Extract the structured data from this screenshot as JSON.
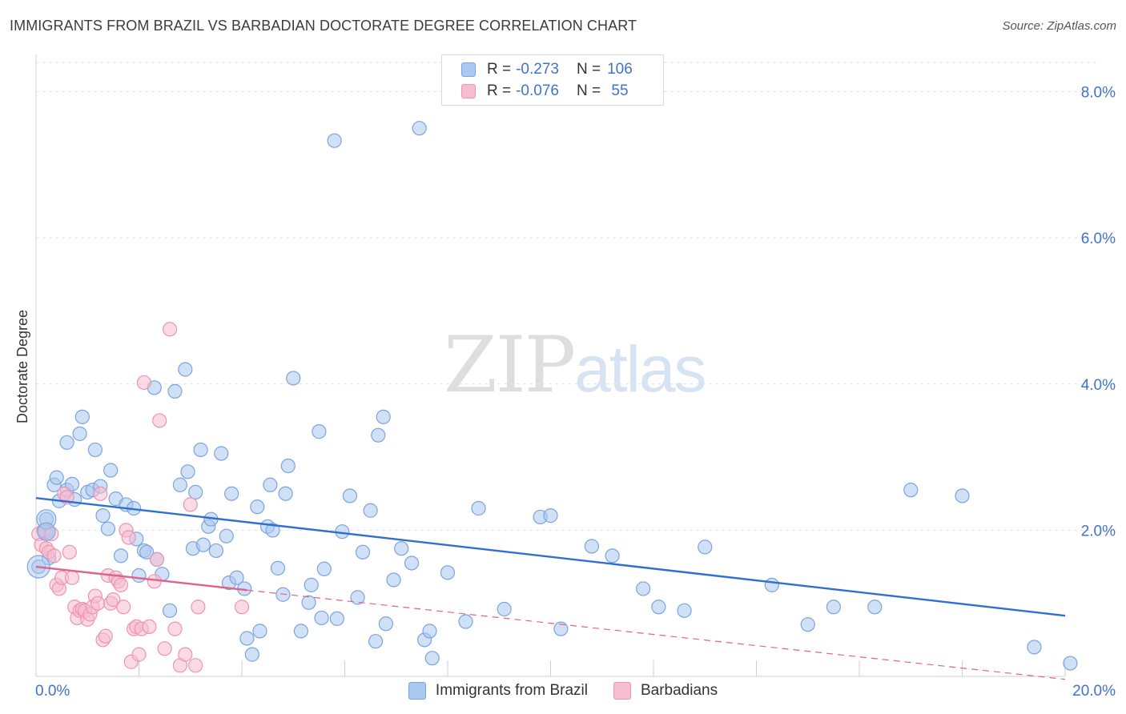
{
  "header": {
    "title": "IMMIGRANTS FROM BRAZIL VS BARBADIAN DOCTORATE DEGREE CORRELATION CHART",
    "source": "Source: ZipAtlas.com"
  },
  "legend_top": {
    "rows": [
      {
        "r_label": "R =",
        "r_value": "-0.273",
        "n_label": "N =",
        "n_value": "106"
      },
      {
        "r_label": "R =",
        "r_value": "-0.076",
        "n_label": "N =",
        "n_value": " 55"
      }
    ]
  },
  "watermark": {
    "zip": "ZIP",
    "atlas": "atlas"
  },
  "colors": {
    "brazil_fill": "#aac8f0",
    "brazil_stroke": "#7ba4dc",
    "brazil_line": "#2f6fd0",
    "barb_fill": "#f6bcd0",
    "barb_stroke": "#ee93b2",
    "barb_line": "#e0628e",
    "tick_color": "#3f73c8",
    "grid": "#e3e3e3"
  },
  "chart_data": {
    "type": "scatter",
    "title": "IMMIGRANTS FROM BRAZIL VS BARBADIAN DOCTORATE DEGREE CORRELATION CHART",
    "xlabel": "",
    "ylabel": "Doctorate Degree",
    "xlim": [
      0,
      20
    ],
    "ylim": [
      0,
      8.4
    ],
    "x_tick_labels": [
      "0.0%",
      "20.0%"
    ],
    "y_ticks": [
      2,
      4,
      6,
      8
    ],
    "y_tick_labels": [
      "2.0%",
      "4.0%",
      "6.0%",
      "8.0%"
    ],
    "grid": true,
    "legend": [
      "Immigrants from Brazil",
      "Barbadians"
    ],
    "series": [
      {
        "name": "Immigrants from Brazil",
        "trend": {
          "x": [
            0,
            20
          ],
          "y": [
            2.44,
            0.83
          ],
          "style": "solid"
        },
        "points": [
          [
            0.05,
            1.5
          ],
          [
            0.2,
            2.15
          ],
          [
            0.2,
            1.98
          ],
          [
            0.25,
            1.62
          ],
          [
            0.35,
            2.62
          ],
          [
            0.4,
            2.72
          ],
          [
            0.45,
            2.4
          ],
          [
            0.6,
            2.55
          ],
          [
            0.6,
            3.2
          ],
          [
            0.7,
            2.63
          ],
          [
            0.75,
            2.42
          ],
          [
            0.85,
            3.32
          ],
          [
            0.9,
            3.55
          ],
          [
            1.0,
            2.52
          ],
          [
            1.1,
            2.55
          ],
          [
            1.15,
            3.1
          ],
          [
            1.25,
            2.6
          ],
          [
            1.3,
            2.2
          ],
          [
            1.4,
            2.02
          ],
          [
            1.45,
            2.82
          ],
          [
            1.55,
            2.43
          ],
          [
            1.65,
            1.65
          ],
          [
            1.75,
            2.35
          ],
          [
            1.9,
            2.3
          ],
          [
            1.95,
            1.88
          ],
          [
            2.0,
            1.38
          ],
          [
            2.1,
            1.72
          ],
          [
            2.15,
            1.7
          ],
          [
            2.3,
            3.95
          ],
          [
            2.35,
            1.6
          ],
          [
            2.45,
            1.4
          ],
          [
            2.6,
            0.9
          ],
          [
            2.7,
            3.9
          ],
          [
            2.8,
            2.62
          ],
          [
            2.9,
            4.2
          ],
          [
            2.95,
            2.8
          ],
          [
            3.05,
            1.75
          ],
          [
            3.1,
            2.52
          ],
          [
            3.2,
            3.1
          ],
          [
            3.25,
            1.8
          ],
          [
            3.35,
            2.05
          ],
          [
            3.4,
            2.15
          ],
          [
            3.5,
            1.72
          ],
          [
            3.6,
            3.05
          ],
          [
            3.7,
            1.92
          ],
          [
            3.75,
            1.28
          ],
          [
            3.8,
            2.5
          ],
          [
            3.9,
            1.35
          ],
          [
            4.05,
            1.2
          ],
          [
            4.1,
            0.52
          ],
          [
            4.2,
            0.3
          ],
          [
            4.3,
            2.32
          ],
          [
            4.35,
            0.62
          ],
          [
            4.5,
            2.05
          ],
          [
            4.55,
            2.62
          ],
          [
            4.6,
            2.0
          ],
          [
            4.7,
            1.48
          ],
          [
            4.8,
            1.12
          ],
          [
            4.85,
            2.5
          ],
          [
            4.9,
            2.88
          ],
          [
            5.0,
            4.08
          ],
          [
            5.15,
            0.62
          ],
          [
            5.3,
            1.01
          ],
          [
            5.35,
            1.25
          ],
          [
            5.5,
            3.35
          ],
          [
            5.55,
            0.8
          ],
          [
            5.6,
            1.47
          ],
          [
            5.8,
            7.33
          ],
          [
            5.85,
            0.79
          ],
          [
            5.95,
            1.98
          ],
          [
            6.1,
            2.47
          ],
          [
            6.25,
            1.08
          ],
          [
            6.35,
            1.7
          ],
          [
            6.5,
            2.27
          ],
          [
            6.6,
            0.48
          ],
          [
            6.65,
            3.3
          ],
          [
            6.75,
            3.55
          ],
          [
            6.8,
            0.72
          ],
          [
            6.95,
            1.32
          ],
          [
            7.1,
            1.75
          ],
          [
            7.3,
            1.55
          ],
          [
            7.45,
            7.5
          ],
          [
            7.55,
            0.5
          ],
          [
            7.65,
            0.62
          ],
          [
            7.7,
            0.25
          ],
          [
            8.0,
            1.42
          ],
          [
            8.35,
            0.75
          ],
          [
            8.6,
            2.3
          ],
          [
            9.1,
            0.92
          ],
          [
            9.8,
            2.18
          ],
          [
            10.0,
            2.2
          ],
          [
            10.2,
            0.65
          ],
          [
            10.8,
            1.78
          ],
          [
            11.2,
            1.65
          ],
          [
            11.8,
            1.2
          ],
          [
            12.1,
            0.95
          ],
          [
            12.6,
            0.9
          ],
          [
            13.0,
            1.77
          ],
          [
            14.3,
            1.25
          ],
          [
            15.0,
            0.71
          ],
          [
            15.5,
            0.95
          ],
          [
            16.3,
            0.95
          ],
          [
            17.0,
            2.55
          ],
          [
            18.0,
            2.47
          ],
          [
            19.4,
            0.4
          ],
          [
            20.1,
            0.18
          ]
        ]
      },
      {
        "name": "Barbadians",
        "trend": {
          "x": [
            0,
            4.1
          ],
          "y": [
            1.5,
            1.18
          ],
          "style": "solid"
        },
        "trend_extension": {
          "x": [
            4.1,
            20
          ],
          "y": [
            1.18,
            -0.04
          ],
          "style": "dashed"
        },
        "points": [
          [
            0.05,
            1.95
          ],
          [
            0.1,
            1.8
          ],
          [
            0.15,
            2.0
          ],
          [
            0.2,
            1.75
          ],
          [
            0.25,
            1.7
          ],
          [
            0.3,
            1.95
          ],
          [
            0.35,
            1.65
          ],
          [
            0.4,
            1.25
          ],
          [
            0.45,
            1.2
          ],
          [
            0.5,
            1.35
          ],
          [
            0.55,
            2.5
          ],
          [
            0.6,
            2.45
          ],
          [
            0.65,
            1.7
          ],
          [
            0.7,
            1.35
          ],
          [
            0.75,
            0.95
          ],
          [
            0.8,
            0.8
          ],
          [
            0.85,
            0.9
          ],
          [
            0.9,
            0.92
          ],
          [
            0.95,
            0.9
          ],
          [
            1.0,
            0.78
          ],
          [
            1.05,
            0.85
          ],
          [
            1.1,
            0.95
          ],
          [
            1.15,
            1.1
          ],
          [
            1.2,
            1.0
          ],
          [
            1.25,
            2.5
          ],
          [
            1.3,
            0.5
          ],
          [
            1.35,
            0.55
          ],
          [
            1.4,
            1.38
          ],
          [
            1.45,
            1.0
          ],
          [
            1.5,
            1.05
          ],
          [
            1.55,
            1.35
          ],
          [
            1.6,
            1.3
          ],
          [
            1.65,
            1.25
          ],
          [
            1.7,
            0.95
          ],
          [
            1.75,
            2.0
          ],
          [
            1.8,
            1.9
          ],
          [
            1.85,
            0.2
          ],
          [
            1.9,
            0.65
          ],
          [
            1.95,
            0.68
          ],
          [
            2.0,
            0.3
          ],
          [
            2.05,
            0.65
          ],
          [
            2.1,
            4.02
          ],
          [
            2.2,
            0.68
          ],
          [
            2.3,
            1.3
          ],
          [
            2.35,
            1.6
          ],
          [
            2.4,
            3.5
          ],
          [
            2.5,
            0.38
          ],
          [
            2.6,
            4.75
          ],
          [
            2.7,
            0.65
          ],
          [
            2.8,
            0.15
          ],
          [
            2.9,
            0.3
          ],
          [
            3.0,
            2.35
          ],
          [
            3.1,
            0.15
          ],
          [
            3.15,
            0.95
          ],
          [
            4.0,
            0.95
          ]
        ]
      }
    ]
  }
}
